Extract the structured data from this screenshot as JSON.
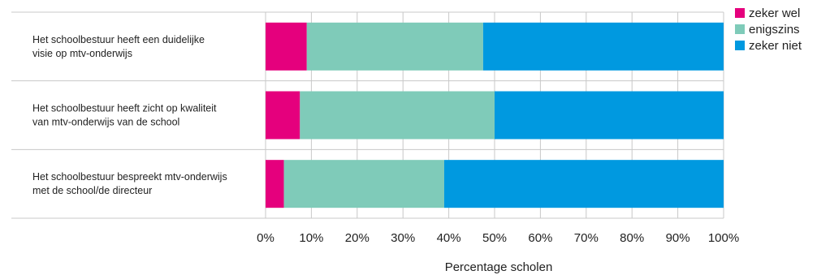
{
  "chart_data": {
    "type": "bar",
    "orientation": "horizontal",
    "stacked": true,
    "categories": [
      "Het schoolbestuur heeft een duidelijke visie op mtv-onderwijs",
      "Het schoolbestuur heeft zicht op kwaliteit van mtv-onderwijs van de school",
      "Het schoolbestuur bespreekt mtv-onderwijs met de school/de directeur"
    ],
    "category_lines": [
      [
        "Het schoolbestuur heeft een duidelijke",
        "visie op mtv-onderwijs"
      ],
      [
        "Het schoolbestuur heeft zicht op kwaliteit",
        "van mtv-onderwijs van de school"
      ],
      [
        "Het schoolbestuur bespreekt mtv-onderwijs",
        "met de school/de directeur"
      ]
    ],
    "series": [
      {
        "name": "zeker wel",
        "color": "#e5007d",
        "values": [
          9,
          7.5,
          4
        ]
      },
      {
        "name": "enigszins",
        "color": "#7fcbb9",
        "values": [
          38.5,
          42.5,
          35
        ]
      },
      {
        "name": "zeker niet",
        "color": "#0099e0",
        "values": [
          52.5,
          50,
          61
        ]
      }
    ],
    "xlim": [
      0,
      100
    ],
    "xticks": [
      "0%",
      "10%",
      "20%",
      "30%",
      "40%",
      "50%",
      "60%",
      "70%",
      "80%",
      "90%",
      "100%"
    ],
    "xlabel": "Percentage scholen",
    "ylabel": "",
    "title": "",
    "grid": "vertical",
    "legend_position": "top-right"
  }
}
